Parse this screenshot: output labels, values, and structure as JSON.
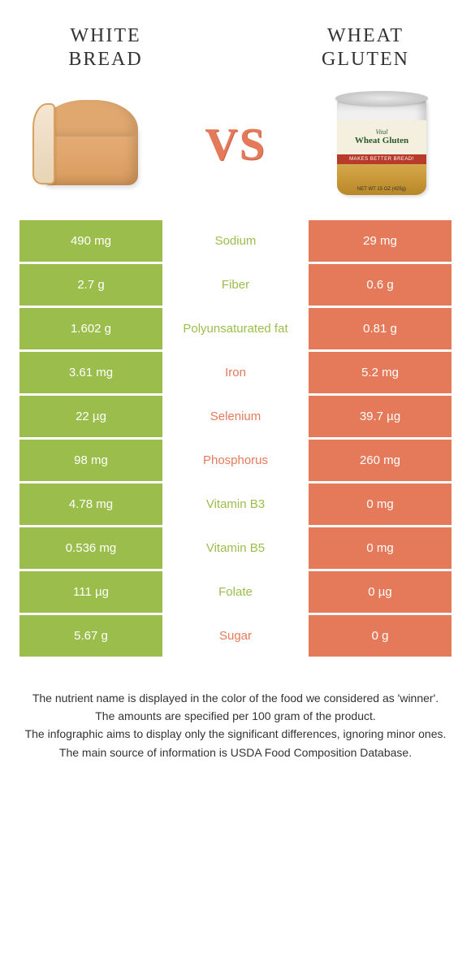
{
  "colors": {
    "green": "#9bbd4b",
    "orange": "#e57a5a",
    "text": "#333333",
    "background": "#ffffff"
  },
  "left_food": {
    "title": "WHITE BREAD"
  },
  "right_food": {
    "title": "WHEAT GLUTEN",
    "can_vital": "Vital",
    "can_wg": "Wheat Gluten",
    "can_red": "MAKES BETTER BREAD!",
    "can_netwt": "NET WT 15 OZ (425g)"
  },
  "vs_label": "VS",
  "comparison": {
    "type": "table",
    "columns": [
      "left_value",
      "nutrient",
      "right_value"
    ],
    "rows": [
      {
        "left": "490 mg",
        "mid": "Sodium",
        "right": "29 mg",
        "winner": "left"
      },
      {
        "left": "2.7 g",
        "mid": "Fiber",
        "right": "0.6 g",
        "winner": "left"
      },
      {
        "left": "1.602 g",
        "mid": "Polyunsaturated fat",
        "right": "0.81 g",
        "winner": "left"
      },
      {
        "left": "3.61 mg",
        "mid": "Iron",
        "right": "5.2 mg",
        "winner": "right"
      },
      {
        "left": "22 µg",
        "mid": "Selenium",
        "right": "39.7 µg",
        "winner": "right"
      },
      {
        "left": "98 mg",
        "mid": "Phosphorus",
        "right": "260 mg",
        "winner": "right"
      },
      {
        "left": "4.78 mg",
        "mid": "Vitamin B3",
        "right": "0 mg",
        "winner": "left"
      },
      {
        "left": "0.536 mg",
        "mid": "Vitamin B5",
        "right": "0 mg",
        "winner": "left"
      },
      {
        "left": "111 µg",
        "mid": "Folate",
        "right": "0 µg",
        "winner": "left"
      },
      {
        "left": "5.67 g",
        "mid": "Sugar",
        "right": "0 g",
        "winner": "right"
      }
    ]
  },
  "footer": {
    "line1": "The nutrient name is displayed in the color of the food we considered as 'winner'.",
    "line2": "The amounts are specified per 100 gram of the product.",
    "line3": "The infographic aims to display only the significant differences, ignoring minor ones.",
    "line4": "The main source of information is USDA Food Composition Database."
  }
}
